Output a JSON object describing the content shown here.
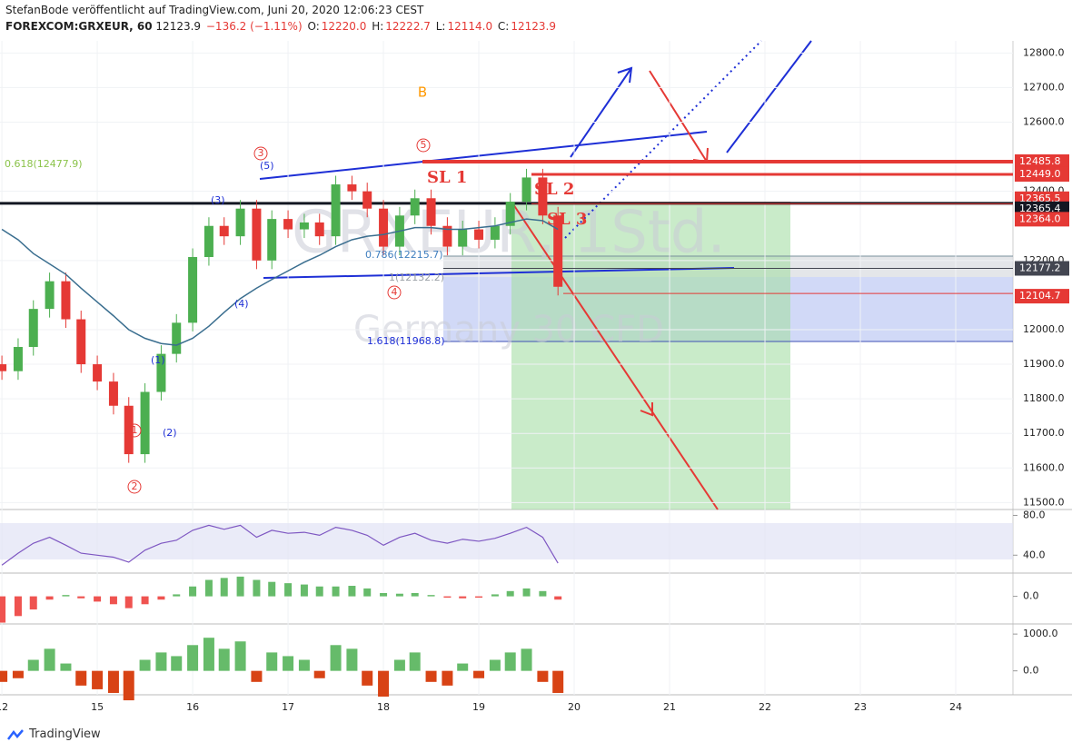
{
  "header": {
    "publisher": "StefanBode veröffentlicht auf TradingView.com, Juni 20, 2020 12:06:23 CEST",
    "symbol": "FOREXCOM:GRXEUR, 60",
    "last": "12123.9",
    "change": "−136.2 (−1.11%)",
    "o_label": "O:",
    "o": "12220.0",
    "h_label": "H:",
    "h": "12222.7",
    "l_label": "L:",
    "l": "12114.0",
    "c_label": "C:",
    "c": "12123.9"
  },
  "watermark": {
    "symbol": "GRXEUR, 1Std.",
    "name": "Germany 30 CFD"
  },
  "footer": {
    "brand": "TradingView"
  },
  "chart_data": {
    "type": "candlestick",
    "x": [
      0,
      0.17,
      0.33,
      0.5,
      0.67,
      0.83,
      1,
      1.17,
      1.33,
      1.5,
      1.67,
      1.83,
      2,
      2.17,
      2.33,
      2.5,
      2.67,
      2.83,
      3,
      3.17,
      3.33,
      3.5,
      3.67,
      3.83,
      4,
      4.17,
      4.33,
      4.5,
      4.67,
      4.83,
      5,
      5.17,
      5.33,
      5.5,
      5.67,
      5.83
    ],
    "open": [
      11900,
      11880,
      11950,
      12060,
      12140,
      12030,
      11900,
      11850,
      11780,
      11640,
      11820,
      11930,
      12020,
      12210,
      12300,
      12270,
      12350,
      12200,
      12320,
      12290,
      12310,
      12270,
      12420,
      12400,
      12350,
      12240,
      12330,
      12380,
      12300,
      12240,
      12290,
      12260,
      12300,
      12370,
      12440,
      12330
    ],
    "high": [
      11925,
      11975,
      12085,
      12165,
      12165,
      12055,
      11925,
      11875,
      11805,
      11845,
      11955,
      12045,
      12235,
      12325,
      12325,
      12375,
      12375,
      12345,
      12345,
      12335,
      12335,
      12445,
      12445,
      12425,
      12375,
      12355,
      12405,
      12405,
      12325,
      12315,
      12315,
      12325,
      12395,
      12465,
      12465,
      12355
    ],
    "low": [
      11855,
      11855,
      11925,
      12035,
      12005,
      11875,
      11825,
      11755,
      11615,
      11615,
      11795,
      11905,
      11995,
      12185,
      12245,
      12245,
      12175,
      12175,
      12265,
      12265,
      12245,
      12245,
      12375,
      12325,
      12215,
      12215,
      12305,
      12275,
      12215,
      12215,
      12235,
      12235,
      12275,
      12345,
      12305,
      12099
    ],
    "close": [
      11880,
      11950,
      12060,
      12140,
      12030,
      11900,
      11850,
      11780,
      11640,
      11820,
      11930,
      12020,
      12210,
      12300,
      12270,
      12350,
      12200,
      12320,
      12290,
      12310,
      12270,
      12420,
      12400,
      12350,
      12240,
      12330,
      12380,
      12300,
      12240,
      12290,
      12260,
      12300,
      12370,
      12440,
      12330,
      12124
    ],
    "up_color": "#4caf50",
    "down_color": "#e53935",
    "ma": {
      "color": "#3a6e8f",
      "values": [
        12290,
        12260,
        12220,
        12190,
        12160,
        12120,
        12080,
        12040,
        12000,
        11975,
        11960,
        11955,
        11975,
        12010,
        12050,
        12090,
        12120,
        12145,
        12170,
        12195,
        12215,
        12240,
        12260,
        12270,
        12275,
        12285,
        12295,
        12295,
        12290,
        12290,
        12295,
        12300,
        12310,
        12320,
        12315,
        12290
      ]
    },
    "ylim": [
      11480,
      12835
    ],
    "yticks": [
      {
        "value": 12800,
        "label": "12800.0"
      },
      {
        "value": 12700,
        "label": "12700.0"
      },
      {
        "value": 12600,
        "label": "12600.0"
      },
      {
        "value": 12400,
        "label": "12400.0"
      },
      {
        "value": 12200,
        "label": "12200.0"
      },
      {
        "value": 12000,
        "label": "12000.0"
      },
      {
        "value": 11900,
        "label": "11900.0"
      },
      {
        "value": 11800,
        "label": "11800.0"
      },
      {
        "value": 11700,
        "label": "11700.0"
      },
      {
        "value": 11600,
        "label": "11600.0"
      },
      {
        "value": 11500,
        "label": "11500.0"
      }
    ],
    "xlim": [
      -0.02,
      10.6
    ],
    "xticks": [
      {
        "value": 0,
        "label": "12"
      },
      {
        "value": 1,
        "label": "15"
      },
      {
        "value": 2,
        "label": "16"
      },
      {
        "value": 3,
        "label": "17"
      },
      {
        "value": 4,
        "label": "18"
      },
      {
        "value": 5,
        "label": "19"
      },
      {
        "value": 6,
        "label": "20"
      },
      {
        "value": 7,
        "label": "21"
      },
      {
        "value": 8,
        "label": "22"
      },
      {
        "value": 9,
        "label": "23"
      },
      {
        "value": 10,
        "label": "24"
      }
    ],
    "price_tags": [
      {
        "value": 12485.8,
        "label": "12485.8",
        "color": "#e53935"
      },
      {
        "value": 12449,
        "label": "12449.0",
        "color": "#e53935"
      },
      {
        "value": 12365.5,
        "label": "12365.5",
        "color": "#e53935"
      },
      {
        "value": 12365.4,
        "label": "12365.4",
        "color": "#131722"
      },
      {
        "value": 12364,
        "label": "12364.0",
        "color": "#e53935"
      },
      {
        "value": 12177.2,
        "label": "12177.2",
        "color": "#434651"
      },
      {
        "value": 12104.7,
        "label": "12104.7",
        "color": "#e53935"
      }
    ],
    "annotations": {
      "w1": "1",
      "w2": "2",
      "w3": "3",
      "w4": "4",
      "w5": "5",
      "s1": "(1)",
      "s2": "(2)",
      "s3": "(3)",
      "s4": "(4)",
      "s5": "(5)",
      "b": "B",
      "sl1": "SL 1",
      "sl2": "SL 2",
      "sl3": "SL 3",
      "f618": "0.618(12477.9)",
      "f786": "0.786(12215.7)",
      "f1": "1(12132.2)",
      "f1618": "1.618(11968.8)"
    },
    "rsi": {
      "color": "#7e57c2",
      "ylim": [
        22,
        85
      ],
      "yticks": [
        {
          "value": 80,
          "label": "80.0"
        },
        {
          "value": 40,
          "label": "40.0"
        }
      ],
      "values": [
        30,
        42,
        52,
        58,
        50,
        42,
        40,
        38,
        33,
        45,
        52,
        55,
        65,
        70,
        66,
        70,
        58,
        65,
        62,
        63,
        60,
        68,
        65,
        60,
        50,
        58,
        62,
        55,
        52,
        56,
        54,
        57,
        62,
        68,
        58,
        32
      ]
    },
    "macd": {
      "ylim": [
        -4.2,
        3.4
      ],
      "yticks": [
        {
          "value": 0,
          "label": "0.0"
        }
      ],
      "values": [
        -4,
        -3,
        -2,
        -0.5,
        0.2,
        -0.3,
        -0.8,
        -1.2,
        -1.8,
        -1.2,
        -0.5,
        0.3,
        1.5,
        2.5,
        2.8,
        3,
        2.5,
        2.2,
        2,
        1.8,
        1.5,
        1.5,
        1.6,
        1.2,
        0.5,
        0.4,
        0.5,
        0.2,
        -0.2,
        -0.3,
        -0.2,
        0.3,
        0.8,
        1.2,
        0.8,
        -0.5
      ]
    },
    "flow": {
      "ylim": [
        -650,
        1250
      ],
      "yticks": [
        {
          "value": 1000,
          "label": "1000.0"
        },
        {
          "value": 0,
          "label": "0.0"
        }
      ],
      "values": [
        -300,
        -200,
        300,
        600,
        200,
        -400,
        -500,
        -600,
        -800,
        300,
        500,
        400,
        700,
        900,
        600,
        800,
        -300,
        500,
        400,
        300,
        -200,
        700,
        600,
        -400,
        -700,
        300,
        500,
        -300,
        -400,
        200,
        -200,
        300,
        500,
        600,
        -300,
        -600
      ]
    }
  }
}
